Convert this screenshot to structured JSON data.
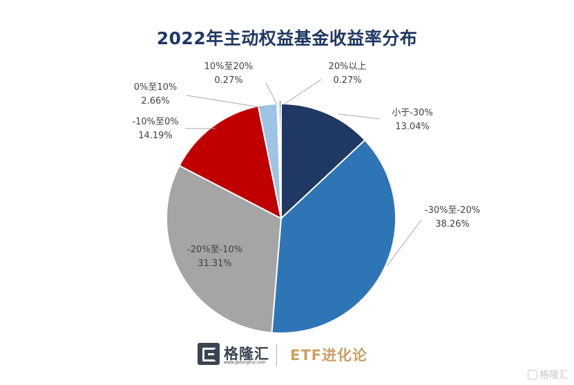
{
  "chart_data": {
    "type": "pie",
    "title": "2022年主动权益基金收益率分布",
    "slices": [
      {
        "label": "小于-30%",
        "value": 13.04,
        "value_text": "13.04%",
        "color": "#1f3864"
      },
      {
        "label": "-30%至-20%",
        "value": 38.26,
        "value_text": "38.26%",
        "color": "#2e75b6"
      },
      {
        "label": "-20%至-10%",
        "value": 31.31,
        "value_text": "31.31%",
        "color": "#a5a5a5"
      },
      {
        "label": "-10%至0%",
        "value": 14.19,
        "value_text": "14.19%",
        "color": "#c00000"
      },
      {
        "label": "0%至10%",
        "value": 2.66,
        "value_text": "2.66%",
        "color": "#9dc3e6"
      },
      {
        "label": "10%至20%",
        "value": 0.27,
        "value_text": "0.27%",
        "color": "#d9d9d9"
      },
      {
        "label": "20%以上",
        "value": 0.27,
        "value_text": "0.27%",
        "color": "#1f3864"
      }
    ],
    "legend": "none"
  },
  "footer": {
    "brand_name": "格隆汇",
    "brand_url": "www.gelonghui.com",
    "brand_right": "ETF进化论"
  },
  "watermark": {
    "text": "格隆汇"
  }
}
